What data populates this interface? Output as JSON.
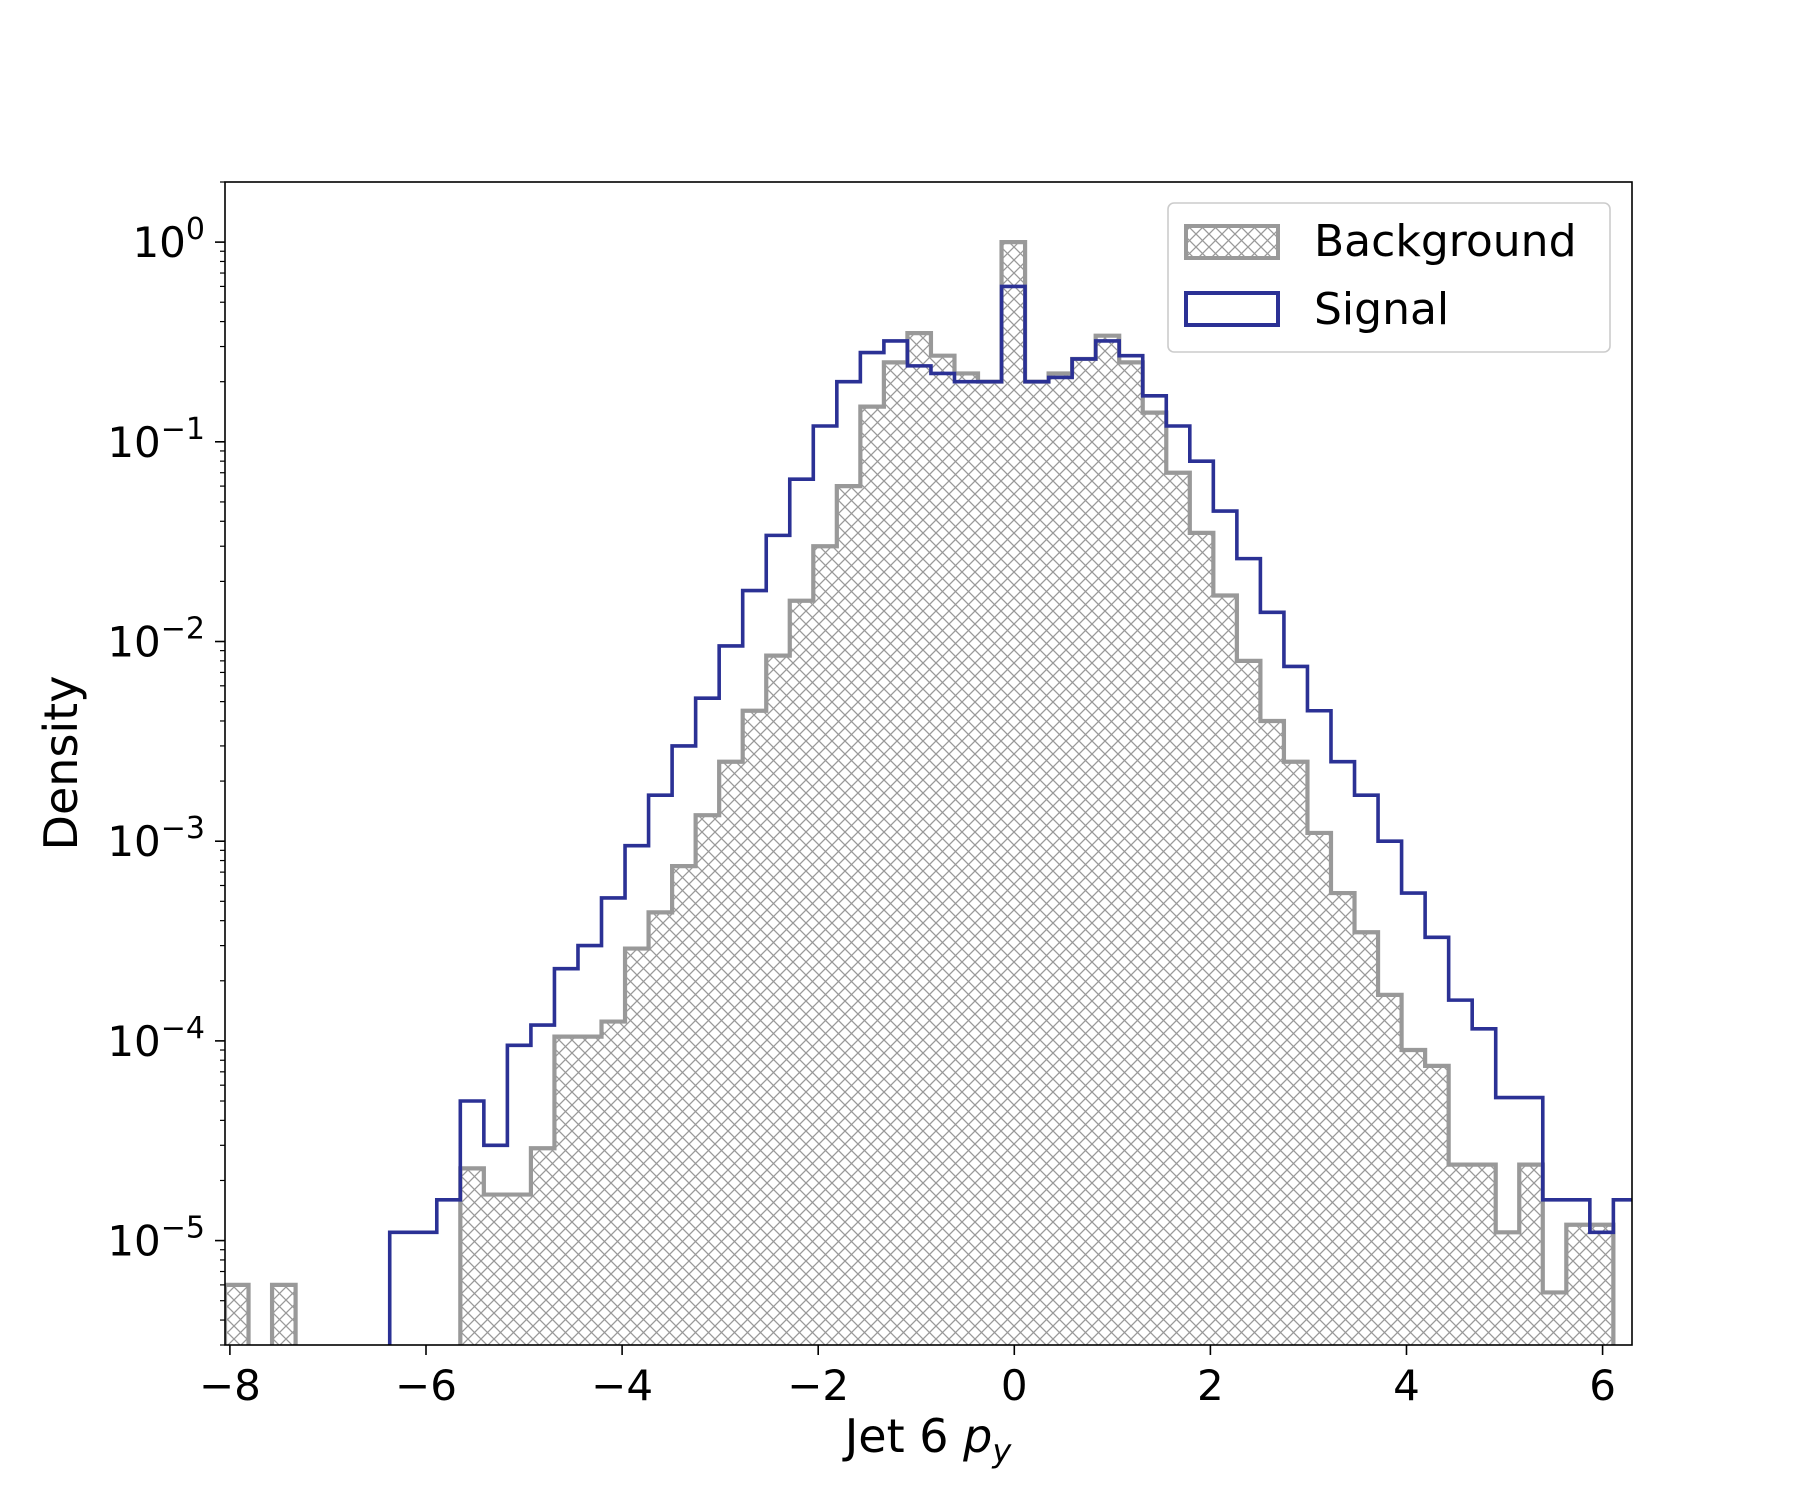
{
  "chart_data": {
    "type": "histogram",
    "xlabel_prefix": "Jet 6 ",
    "xlabel_var": "p",
    "xlabel_sub": "y",
    "ylabel": "Density",
    "yscale": "log",
    "xlim": [
      -8.05,
      6.3
    ],
    "ylim": [
      3e-06,
      2.0
    ],
    "grid": false,
    "legend_placement": "top-right",
    "x_ticks": [
      -8,
      -6,
      -4,
      -2,
      0,
      2,
      4,
      6
    ],
    "x_tick_labels": [
      "−8",
      "−6",
      "−4",
      "−2",
      "0",
      "2",
      "4",
      "6"
    ],
    "y_ticks": [
      {
        "value": 1,
        "mantissa": "10",
        "exponent": "0"
      },
      {
        "value": 0.1,
        "mantissa": "10",
        "exponent": "−1"
      },
      {
        "value": 0.01,
        "mantissa": "10",
        "exponent": "−2"
      },
      {
        "value": 0.001,
        "mantissa": "10",
        "exponent": "−3"
      },
      {
        "value": 0.0001,
        "mantissa": "10",
        "exponent": "−4"
      },
      {
        "value": 1e-05,
        "mantissa": "10",
        "exponent": "−5"
      }
    ],
    "bin_start": -8.05,
    "bin_width": 0.24,
    "series": [
      {
        "name": "Background",
        "style": "hatched",
        "color": "#999999",
        "values": [
          6e-06,
          0,
          6e-06,
          0,
          0,
          0,
          0,
          0,
          0,
          0,
          2.3e-05,
          1.7e-05,
          1.7e-05,
          2.9e-05,
          0.000105,
          0.000105,
          0.000125,
          0.00029,
          0.00044,
          0.00075,
          0.00135,
          0.0025,
          0.0045,
          0.0085,
          0.016,
          0.03,
          0.06,
          0.15,
          0.25,
          0.35,
          0.27,
          0.22,
          0.2,
          1.0,
          0.2,
          0.22,
          0.26,
          0.34,
          0.25,
          0.14,
          0.07,
          0.035,
          0.017,
          0.008,
          0.004,
          0.0025,
          0.0011,
          0.00055,
          0.00035,
          0.00017,
          9e-05,
          7.5e-05,
          2.4e-05,
          2.4e-05,
          1.1e-05,
          2.4e-05,
          5.5e-06,
          1.2e-05,
          1.2e-05
        ]
      },
      {
        "name": "Signal",
        "style": "step",
        "color": "#2b3195",
        "values": [
          0,
          0,
          0,
          0,
          0,
          0,
          0,
          1.1e-05,
          1.1e-05,
          1.6e-05,
          5e-05,
          3e-05,
          9.5e-05,
          0.00012,
          0.00023,
          0.0003,
          0.00052,
          0.00095,
          0.0017,
          0.003,
          0.0052,
          0.0095,
          0.018,
          0.034,
          0.065,
          0.12,
          0.2,
          0.28,
          0.32,
          0.24,
          0.22,
          0.2,
          0.2,
          0.6,
          0.2,
          0.21,
          0.26,
          0.32,
          0.27,
          0.17,
          0.12,
          0.08,
          0.045,
          0.026,
          0.014,
          0.0075,
          0.0045,
          0.0025,
          0.0017,
          0.001,
          0.00055,
          0.00033,
          0.00016,
          0.000115,
          5.2e-05,
          5.2e-05,
          1.6e-05,
          1.6e-05,
          1.1e-05,
          1.6e-05
        ]
      }
    ]
  }
}
